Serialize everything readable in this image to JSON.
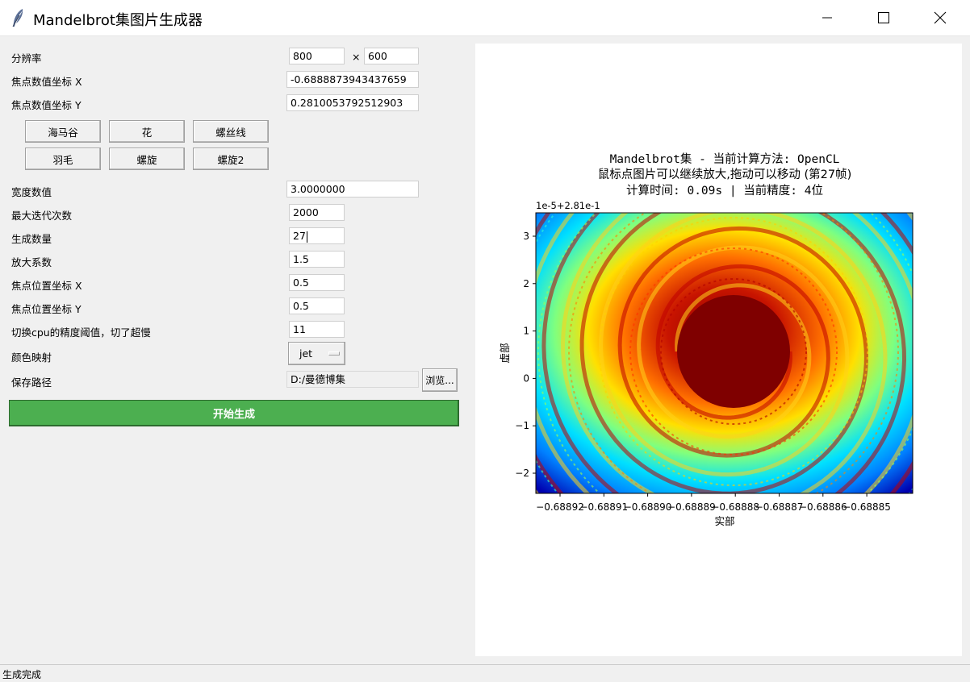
{
  "window": {
    "title": "Mandelbrot集图片生成器",
    "icons": {
      "app": "feather-icon",
      "minimize": "minimize-icon",
      "maximize": "maximize-icon",
      "close": "close-icon"
    }
  },
  "form": {
    "resolution_label": "分辨率",
    "resolution_width": "800",
    "times_sign": "×",
    "resolution_height": "600",
    "focus_value_x_label": "焦点数值坐标 X",
    "focus_value_x": "-0.6888873943437659",
    "focus_value_y_label": "焦点数值坐标 Y",
    "focus_value_y": "0.2810053792512903",
    "presets": [
      "海马谷",
      "花",
      "螺丝线",
      "羽毛",
      "螺旋",
      "螺旋2"
    ],
    "width_value_label": "宽度数值",
    "width_value": "3.0000000",
    "max_iter_label": "最大迭代次数",
    "max_iter": "2000",
    "gen_count_label": "生成数量",
    "gen_count": "27",
    "zoom_factor_label": "放大系数",
    "zoom_factor": "1.5",
    "focus_pos_x_label": "焦点位置坐标 X",
    "focus_pos_x": "0.5",
    "focus_pos_y_label": "焦点位置坐标 Y",
    "focus_pos_y": "0.5",
    "cpu_threshold_label": "切换cpu的精度阈值，切了超慢",
    "cpu_threshold": "11",
    "colormap_label": "颜色映射",
    "colormap": "jet",
    "save_path_label": "保存路径",
    "save_path": "D:/曼德博集",
    "browse_label": "浏览...",
    "start_label": "开始生成"
  },
  "plot": {
    "title_line1": "Mandelbrot集 - 当前计算方法: OpenCL",
    "title_line2": "鼠标点图片可以继续放大,拖动可以移动 (第27帧)",
    "title_line3": "计算时间: 0.09s | 当前精度: 4位",
    "offset_label": "1e-5+2.81e-1",
    "xlabel": "实部",
    "ylabel": "虚部",
    "x_ticks": [
      "−0.68892",
      "−0.68891",
      "−0.68890",
      "−0.68889",
      "−0.68888",
      "−0.68887",
      "−0.68886",
      "−0.68885"
    ],
    "y_ticks": [
      "3",
      "2",
      "1",
      "0",
      "−1",
      "−2"
    ],
    "colormap": "jet",
    "core_color": "#800000"
  },
  "status": {
    "text": "生成完成"
  }
}
